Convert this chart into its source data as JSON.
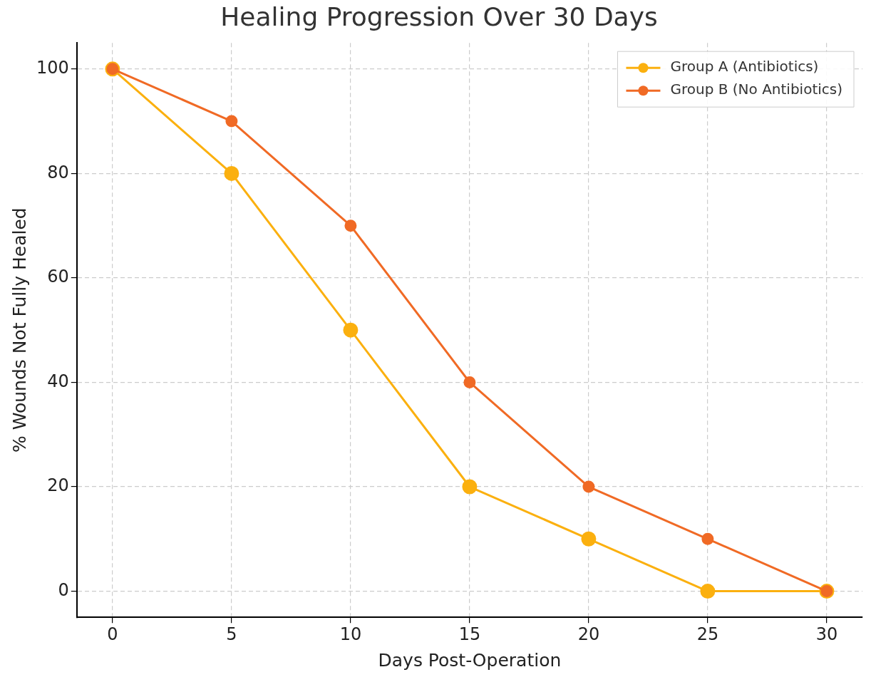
{
  "chart_data": {
    "type": "line",
    "title": "Healing Progression Over 30 Days",
    "xlabel": "Days Post-Operation",
    "ylabel": "% Wounds Not Fully Healed",
    "x": [
      0,
      5,
      10,
      15,
      20,
      25,
      30
    ],
    "series": [
      {
        "name": "Group A (Antibiotics)",
        "color": "#fbb00f",
        "values": [
          100,
          80,
          50,
          20,
          10,
          0,
          0
        ]
      },
      {
        "name": "Group B (No Antibiotics)",
        "color": "#f06a25",
        "values": [
          100,
          90,
          70,
          40,
          20,
          10,
          0
        ]
      }
    ],
    "xlim": [
      -1.5,
      31.5
    ],
    "xticks": [
      0,
      5,
      10,
      15,
      20,
      25,
      30
    ],
    "ylim": [
      -5,
      105
    ],
    "yticks": [
      0,
      20,
      40,
      60,
      80,
      100
    ],
    "grid": true,
    "legend": "top right",
    "marker": "circle",
    "line_style": "solid"
  }
}
